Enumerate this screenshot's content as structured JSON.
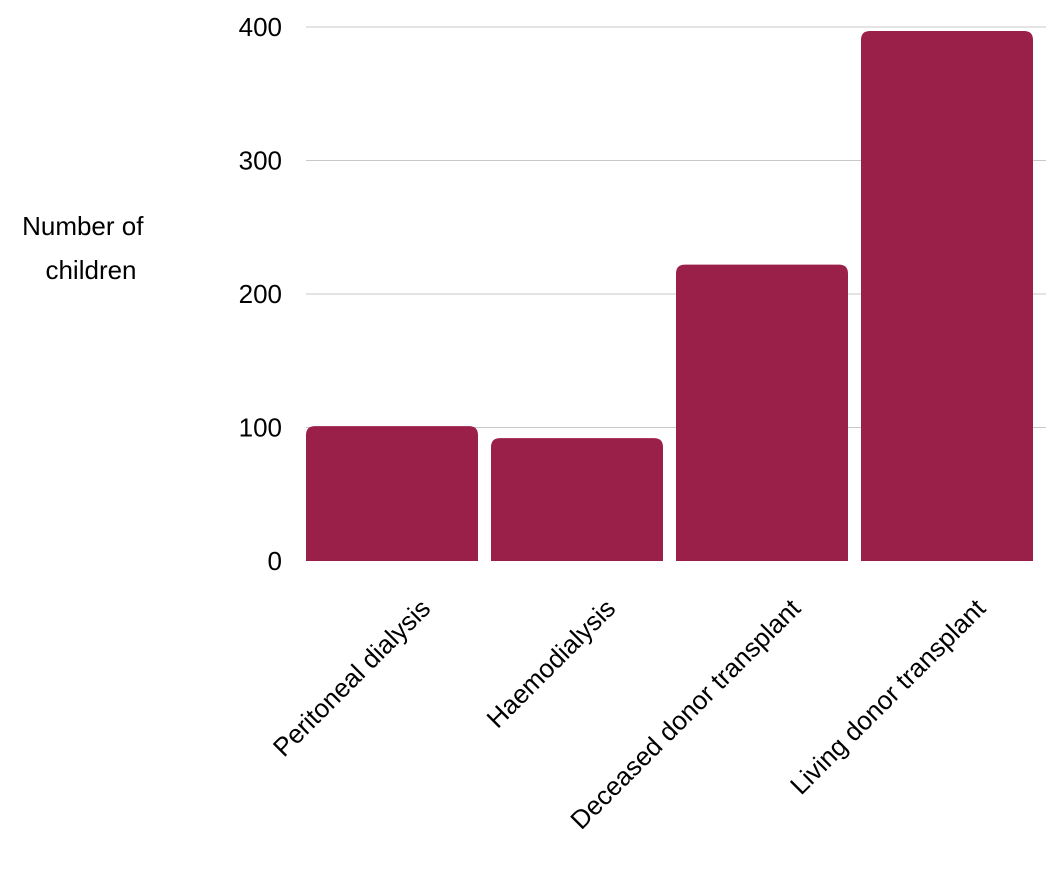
{
  "chart_data": {
    "type": "bar",
    "title": "",
    "xlabel": "",
    "ylabel": "Number of children",
    "ylabel_lines": [
      "Number of",
      "children"
    ],
    "categories": [
      "Peritoneal dialysis",
      "Haemodialysis",
      "Deceased donor transplant",
      "Living donor transplant"
    ],
    "values": [
      101,
      92,
      222,
      397
    ],
    "ylim": [
      0,
      400
    ],
    "yticks": [
      0,
      100,
      200,
      300,
      400
    ],
    "grid": true,
    "legend": "none",
    "bar_color": "#9b2049"
  }
}
